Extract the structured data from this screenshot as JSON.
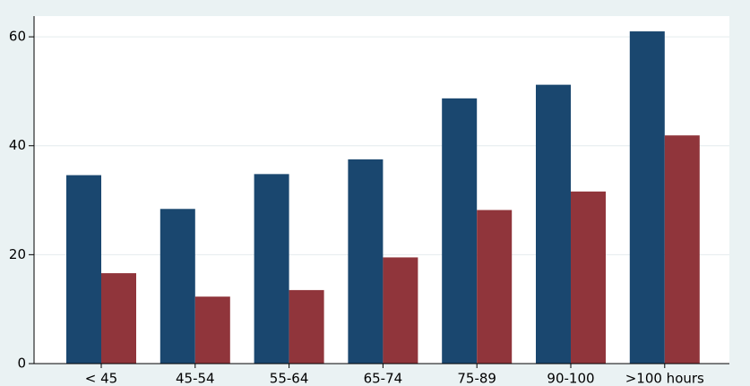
{
  "chart_data": {
    "type": "bar",
    "categories": [
      "< 45",
      "45-54",
      "55-64",
      "65-74",
      "75-89",
      "90-100",
      ">100 hours"
    ],
    "series": [
      {
        "color": "#1a476f",
        "values": [
          34.6,
          28.4,
          34.8,
          37.5,
          48.7,
          51.2,
          61
        ]
      },
      {
        "color": "#90353b",
        "values": [
          16.6,
          12.3,
          13.5,
          19.5,
          28.2,
          31.6,
          41.9
        ]
      }
    ],
    "ylim": [
      0,
      63.8
    ],
    "yticks": [
      0,
      20,
      40,
      60
    ],
    "grid": true
  }
}
